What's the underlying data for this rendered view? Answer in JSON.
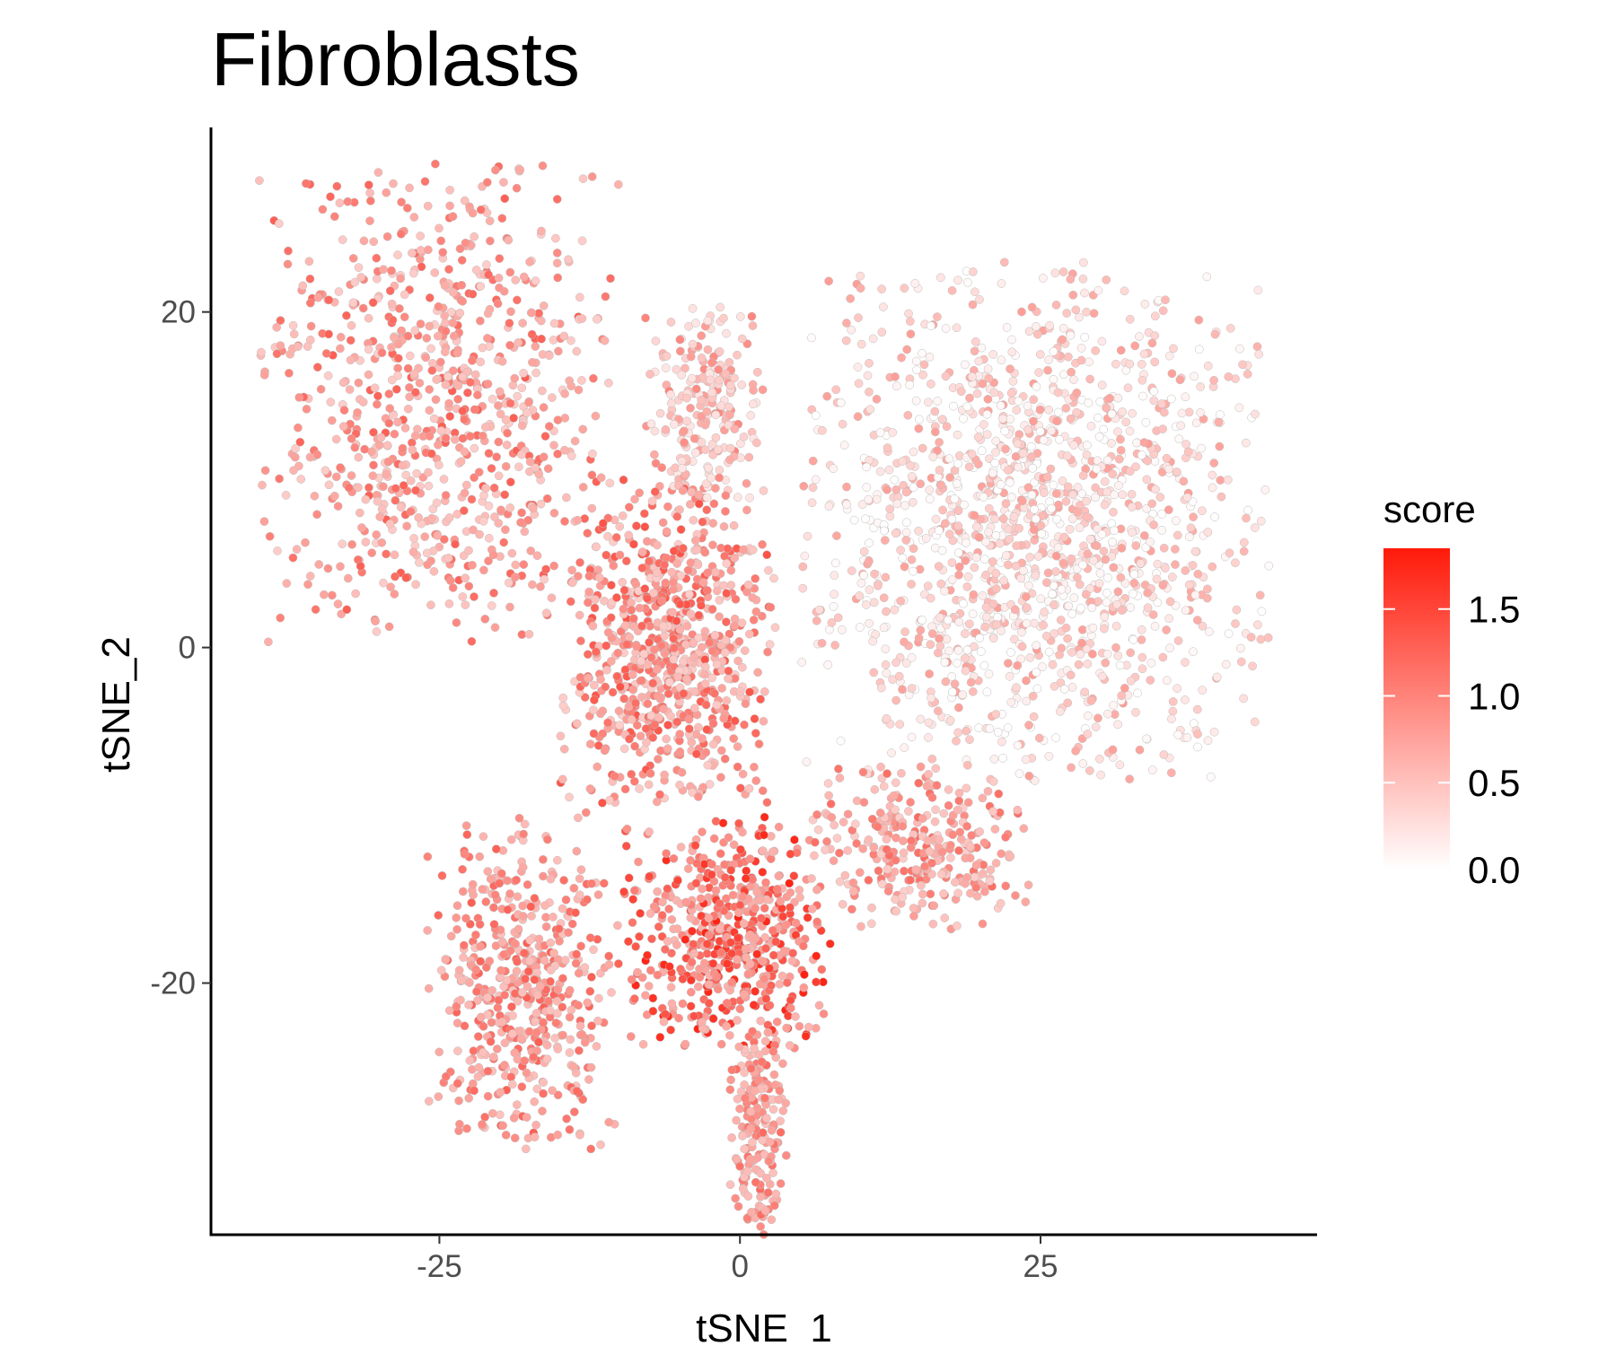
{
  "chart_data": {
    "type": "scatter",
    "title": "Fibroblasts",
    "xlabel": "tSNE_1",
    "ylabel": "tSNE_2",
    "xlim": [
      -44,
      48
    ],
    "ylim": [
      -35,
      31
    ],
    "x_ticks": [
      -25,
      0,
      25
    ],
    "y_ticks": [
      -20,
      0,
      20
    ],
    "x_tick_labels": [
      "-25",
      "0",
      "25"
    ],
    "y_tick_labels": [
      "-20",
      "0",
      "20"
    ],
    "grid": false,
    "legend": {
      "title": "score",
      "position": "right",
      "min": 0.0,
      "max": 1.85,
      "breaks": [
        0.0,
        0.5,
        1.0,
        1.5
      ],
      "break_labels": [
        "0.0",
        "0.5",
        "1.0",
        "1.5"
      ],
      "low_color": "#ffffff",
      "high_color": "#ff1a0a"
    },
    "series": [
      {
        "clusters": [
          {
            "region": "upper-left arm",
            "x_range": [
              -40,
              -10
            ],
            "y_range": [
              0,
              29
            ],
            "score_range": [
              0.4,
              1.3
            ],
            "n_points": 850
          },
          {
            "region": "top-middle spike",
            "x_range": [
              -8,
              2
            ],
            "y_range": [
              8,
              21
            ],
            "score_range": [
              0.2,
              1.0
            ],
            "n_points": 230
          },
          {
            "region": "center",
            "x_range": [
              -15,
              3
            ],
            "y_range": [
              -10,
              10
            ],
            "score_range": [
              0.4,
              1.4
            ],
            "n_points": 780
          },
          {
            "region": "right lobe",
            "x_range": [
              5,
              44
            ],
            "y_range": [
              -8,
              23
            ],
            "score_range": [
              0.0,
              0.8
            ],
            "n_points": 1500
          },
          {
            "region": "bottom left",
            "x_range": [
              -26,
              -10
            ],
            "y_range": [
              -30,
              -10
            ],
            "score_range": [
              0.5,
              1.3
            ],
            "n_points": 520
          },
          {
            "region": "bottom center",
            "x_range": [
              -10,
              8
            ],
            "y_range": [
              -25,
              -10
            ],
            "score_range": [
              0.6,
              1.8
            ],
            "n_points": 560
          },
          {
            "region": "bottom tail",
            "x_range": [
              -1,
              4
            ],
            "y_range": [
              -35,
              -22
            ],
            "score_range": [
              0.5,
              1.2
            ],
            "n_points": 180
          },
          {
            "region": "lower-right arm",
            "x_range": [
              5,
              24
            ],
            "y_range": [
              -17,
              -7
            ],
            "score_range": [
              0.4,
              1.2
            ],
            "n_points": 300
          }
        ]
      }
    ]
  }
}
